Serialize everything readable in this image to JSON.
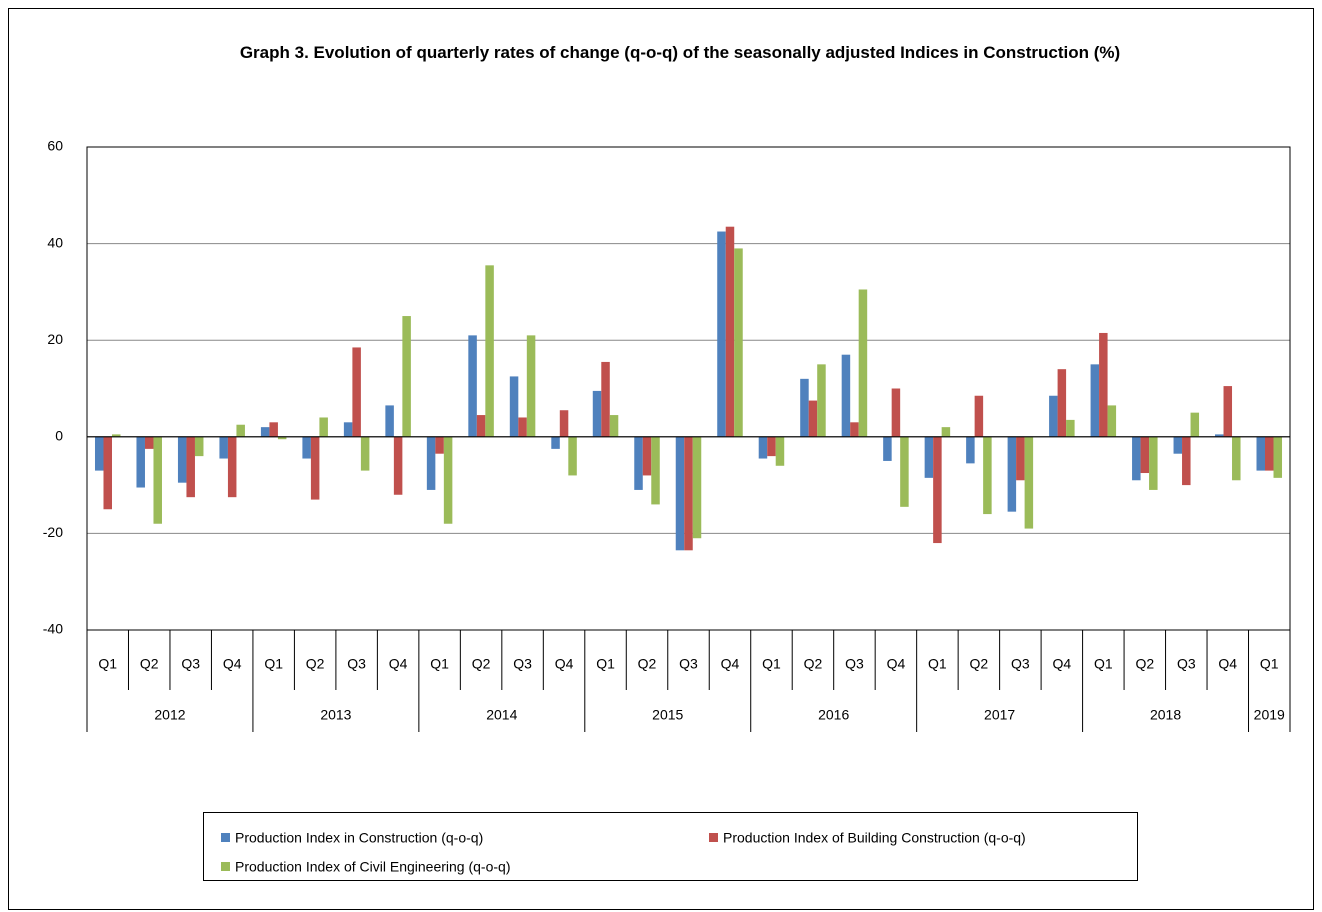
{
  "chart_data": {
    "type": "bar",
    "title": "Graph 3. Evolution of quarterly rates of change (q-o-q) of the seasonally adjusted Indices in Construction (%)",
    "category_groups": [
      {
        "label": "2012",
        "categories": [
          "Q1",
          "Q2",
          "Q3",
          "Q4"
        ]
      },
      {
        "label": "2013",
        "categories": [
          "Q1",
          "Q2",
          "Q3",
          "Q4"
        ]
      },
      {
        "label": "2014",
        "categories": [
          "Q1",
          "Q2",
          "Q3",
          "Q4"
        ]
      },
      {
        "label": "2015",
        "categories": [
          "Q1",
          "Q2",
          "Q3",
          "Q4"
        ]
      },
      {
        "label": "2016",
        "categories": [
          "Q1",
          "Q2",
          "Q3",
          "Q4"
        ]
      },
      {
        "label": "2017",
        "categories": [
          "Q1",
          "Q2",
          "Q3",
          "Q4"
        ]
      },
      {
        "label": "2018",
        "categories": [
          "Q1",
          "Q2",
          "Q3",
          "Q4"
        ]
      },
      {
        "label": "2019",
        "categories": [
          "Q1"
        ]
      }
    ],
    "series": [
      {
        "name": "Production Index in Construction (q-o-q)",
        "color": "#4f81bd",
        "values": [
          -7,
          -10.5,
          -9.5,
          -4.5,
          2,
          -4.5,
          3,
          6.5,
          -11,
          21,
          12.5,
          -2.5,
          9.5,
          -11,
          -23.5,
          42.5,
          -4.5,
          12,
          17,
          -5,
          -8.5,
          -5.5,
          -15.5,
          8.5,
          15,
          -9,
          -3.5,
          0.5,
          -7
        ]
      },
      {
        "name": "Production Index of Building Construction (q-o-q)",
        "color": "#c0504d",
        "values": [
          -15,
          -2.5,
          -12.5,
          -12.5,
          3,
          -13,
          18.5,
          -12,
          -3.5,
          4.5,
          4,
          5.5,
          15.5,
          -8,
          -23.5,
          43.5,
          -4,
          7.5,
          3,
          10,
          -22,
          8.5,
          -9,
          14,
          21.5,
          -7.5,
          -10,
          10.5,
          -7
        ]
      },
      {
        "name": "Production Index of Civil Engineering (q-o-q)",
        "color": "#9bbb59",
        "values": [
          0.5,
          -18,
          -4,
          2.5,
          -0.5,
          4,
          -7,
          25,
          -18,
          35.5,
          21,
          -8,
          4.5,
          -14,
          -21,
          39,
          -6,
          15,
          30.5,
          -14.5,
          2,
          -16,
          -19,
          3.5,
          6.5,
          -11,
          5,
          -9,
          -8.5
        ]
      }
    ],
    "ylim": [
      -40,
      60
    ],
    "yticks": [
      -40,
      -20,
      0,
      20,
      40,
      60
    ],
    "grid": true
  }
}
